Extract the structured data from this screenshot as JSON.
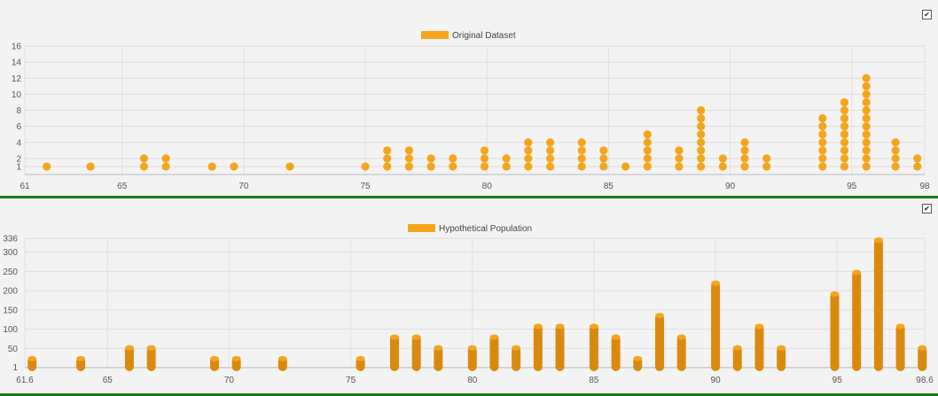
{
  "chart_data": [
    {
      "type": "scatter",
      "style": "dot-plot",
      "legend": [
        "Original Dataset"
      ],
      "legend_position": "top-center",
      "color": "#f5a51c",
      "grid": true,
      "xlim": [
        61,
        98
      ],
      "ylim": [
        0,
        16
      ],
      "x_ticks": [
        "61",
        "65",
        "70",
        "75",
        "80",
        "85",
        "90",
        "95",
        "98"
      ],
      "y_ticks": [
        "1",
        "2",
        "4",
        "6",
        "8",
        "10",
        "12",
        "14",
        "16"
      ],
      "points": [
        {
          "x": 61.9,
          "count": 1
        },
        {
          "x": 63.7,
          "count": 1
        },
        {
          "x": 65.9,
          "count": 2
        },
        {
          "x": 66.8,
          "count": 2
        },
        {
          "x": 68.7,
          "count": 1
        },
        {
          "x": 69.6,
          "count": 1
        },
        {
          "x": 71.9,
          "count": 1
        },
        {
          "x": 75.0,
          "count": 1
        },
        {
          "x": 75.9,
          "count": 3
        },
        {
          "x": 76.8,
          "count": 3
        },
        {
          "x": 77.7,
          "count": 2
        },
        {
          "x": 78.6,
          "count": 2
        },
        {
          "x": 79.9,
          "count": 3
        },
        {
          "x": 80.8,
          "count": 2
        },
        {
          "x": 81.7,
          "count": 4
        },
        {
          "x": 82.6,
          "count": 4
        },
        {
          "x": 83.9,
          "count": 4
        },
        {
          "x": 84.8,
          "count": 3
        },
        {
          "x": 85.7,
          "count": 1
        },
        {
          "x": 86.6,
          "count": 5
        },
        {
          "x": 87.9,
          "count": 3
        },
        {
          "x": 88.8,
          "count": 8
        },
        {
          "x": 89.7,
          "count": 2
        },
        {
          "x": 90.6,
          "count": 4
        },
        {
          "x": 91.5,
          "count": 2
        },
        {
          "x": 93.8,
          "count": 7
        },
        {
          "x": 94.7,
          "count": 9
        },
        {
          "x": 95.6,
          "count": 12
        },
        {
          "x": 96.8,
          "count": 4
        },
        {
          "x": 97.7,
          "count": 2
        }
      ]
    },
    {
      "type": "bar",
      "style": "rounded-column",
      "legend": [
        "Hypothetical Population"
      ],
      "legend_position": "top-center",
      "color": "#d98a0e",
      "grid": true,
      "xlim": [
        61.6,
        98.6
      ],
      "ylim": [
        0,
        336
      ],
      "x_ticks": [
        "61.6",
        "65",
        "70",
        "75",
        "80",
        "85",
        "90",
        "95",
        "98.6"
      ],
      "y_ticks": [
        "1",
        "50",
        "100",
        "150",
        "200",
        "250",
        "300",
        "336"
      ],
      "points": [
        {
          "x": 61.9,
          "value": 28
        },
        {
          "x": 63.9,
          "value": 28
        },
        {
          "x": 65.9,
          "value": 56
        },
        {
          "x": 66.8,
          "value": 56
        },
        {
          "x": 69.4,
          "value": 28
        },
        {
          "x": 70.3,
          "value": 28
        },
        {
          "x": 72.2,
          "value": 28
        },
        {
          "x": 75.4,
          "value": 28
        },
        {
          "x": 76.8,
          "value": 84
        },
        {
          "x": 77.7,
          "value": 84
        },
        {
          "x": 78.6,
          "value": 56
        },
        {
          "x": 80.0,
          "value": 56
        },
        {
          "x": 80.9,
          "value": 84
        },
        {
          "x": 81.8,
          "value": 56
        },
        {
          "x": 82.7,
          "value": 112
        },
        {
          "x": 83.6,
          "value": 112
        },
        {
          "x": 85.0,
          "value": 112
        },
        {
          "x": 85.9,
          "value": 84
        },
        {
          "x": 86.8,
          "value": 28
        },
        {
          "x": 87.7,
          "value": 140
        },
        {
          "x": 88.6,
          "value": 84
        },
        {
          "x": 90.0,
          "value": 224
        },
        {
          "x": 90.9,
          "value": 56
        },
        {
          "x": 91.8,
          "value": 112
        },
        {
          "x": 92.7,
          "value": 56
        },
        {
          "x": 94.9,
          "value": 196
        },
        {
          "x": 95.8,
          "value": 252
        },
        {
          "x": 96.7,
          "value": 336
        },
        {
          "x": 97.6,
          "value": 112
        },
        {
          "x": 98.5,
          "value": 56
        }
      ]
    }
  ],
  "controls": {
    "checkmark": "✔"
  }
}
